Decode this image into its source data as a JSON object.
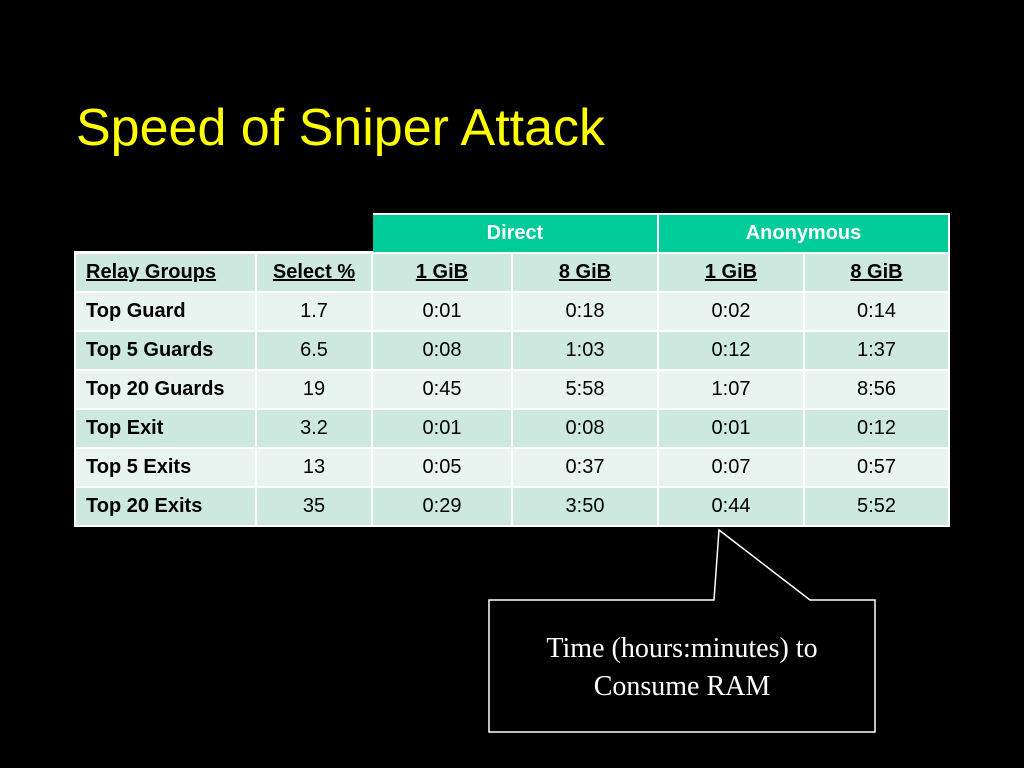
{
  "title": "Speed of Sniper Attack",
  "colors": {
    "background": "#000000",
    "title": "#ffff00",
    "group_header_bg": "#00cc99",
    "row_dark": "#cce8df",
    "row_light": "#e8f4f0",
    "callout_border": "#ffffff"
  },
  "table": {
    "groups": [
      "Direct",
      "Anonymous"
    ],
    "columns": [
      "Relay Groups",
      "Select %",
      "1 GiB",
      "8 GiB",
      "1 GiB",
      "8 GiB"
    ],
    "rows": [
      [
        "Top Guard",
        "1.7",
        "0:01",
        "0:18",
        "0:02",
        "0:14"
      ],
      [
        "Top 5 Guards",
        "6.5",
        "0:08",
        "1:03",
        "0:12",
        "1:37"
      ],
      [
        "Top 20 Guards",
        "19",
        "0:45",
        "5:58",
        "1:07",
        "8:56"
      ],
      [
        "Top Exit",
        "3.2",
        "0:01",
        "0:08",
        "0:01",
        "0:12"
      ],
      [
        "Top 5 Exits",
        "13",
        "0:05",
        "0:37",
        "0:07",
        "0:57"
      ],
      [
        "Top 20 Exits",
        "35",
        "0:29",
        "3:50",
        "0:44",
        "5:52"
      ]
    ]
  },
  "callout": {
    "lines": [
      "Time (hours:minutes) to",
      "Consume RAM"
    ]
  }
}
